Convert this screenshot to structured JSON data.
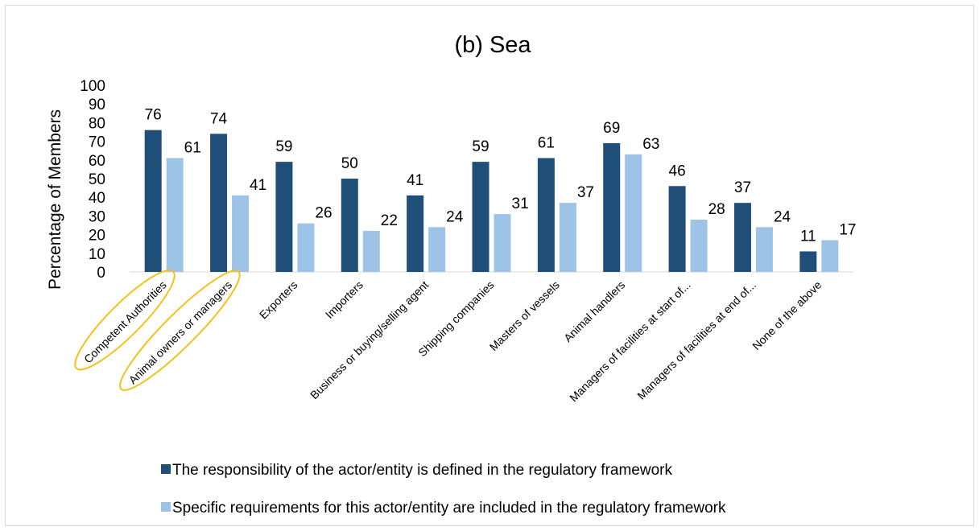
{
  "chart_data": {
    "type": "bar",
    "title": "(b) Sea",
    "ylabel": "Percentage of Members",
    "xlabel": "",
    "ylim": [
      0,
      100
    ],
    "yticks": [
      0,
      10,
      20,
      30,
      40,
      50,
      60,
      70,
      80,
      90,
      100
    ],
    "grid": false,
    "legend_position": "bottom",
    "categories": [
      "Competent Authorities",
      "Animal owners or managers",
      "Exporters",
      "Importers",
      "Business or buying/selling agent",
      "Shipping companies",
      "Masters of vessels",
      "Animal handlers",
      "Managers of facilities at start of...",
      "Managers of facilities at end of...",
      "None of the above"
    ],
    "series": [
      {
        "name": "The responsibility of the actor/entity is defined in the regulatory framework",
        "color": "#1f4e79",
        "values": [
          76,
          74,
          59,
          50,
          41,
          59,
          61,
          69,
          46,
          37,
          11
        ]
      },
      {
        "name": "Specific requirements for this actor/entity are included in the regulatory framework",
        "color": "#9dc3e6",
        "values": [
          61,
          41,
          26,
          22,
          24,
          31,
          37,
          63,
          28,
          24,
          17
        ]
      }
    ],
    "highlighted_categories": [
      "Competent Authorities",
      "Animal owners or managers"
    ],
    "highlight_color": "#f2c31a"
  }
}
